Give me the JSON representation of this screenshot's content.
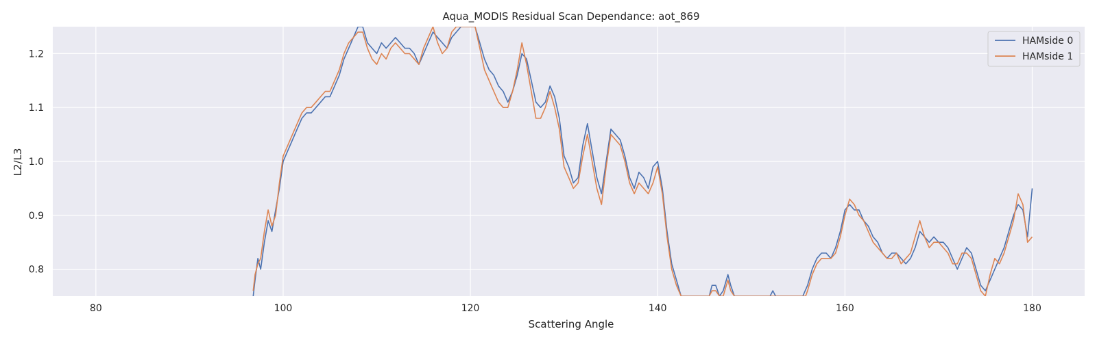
{
  "chart_data": {
    "type": "line",
    "title": "Aqua_MODIS Residual Scan Dependance: aot_869",
    "xlabel": "Scattering Angle",
    "ylabel": "L2/L3",
    "xlim": [
      75.4,
      185.6
    ],
    "ylim": [
      0.75,
      1.25
    ],
    "xticks": [
      80,
      100,
      120,
      140,
      160,
      180
    ],
    "xtick_labels": [
      "80",
      "100",
      "120",
      "140",
      "160",
      "180"
    ],
    "yticks": [
      0.8,
      0.9,
      1.0,
      1.1,
      1.2
    ],
    "ytick_labels": [
      "0.8",
      "0.9",
      "1.0",
      "1.1",
      "1.2"
    ],
    "grid": true,
    "legend_position": "top-right",
    "series": [
      {
        "name": "HAMside 0",
        "color": "#4c72b0",
        "points": [
          [
            96.8,
            0.75
          ],
          [
            97.0,
            0.78
          ],
          [
            97.3,
            0.82
          ],
          [
            97.6,
            0.8
          ],
          [
            98.0,
            0.85
          ],
          [
            98.4,
            0.89
          ],
          [
            98.8,
            0.87
          ],
          [
            99.2,
            0.91
          ],
          [
            99.6,
            0.95
          ],
          [
            100.0,
            1.0
          ],
          [
            100.5,
            1.02
          ],
          [
            101.0,
            1.04
          ],
          [
            101.5,
            1.06
          ],
          [
            102.0,
            1.08
          ],
          [
            102.5,
            1.09
          ],
          [
            103.0,
            1.09
          ],
          [
            103.5,
            1.1
          ],
          [
            104.0,
            1.11
          ],
          [
            104.5,
            1.12
          ],
          [
            105.0,
            1.12
          ],
          [
            105.5,
            1.14
          ],
          [
            106.0,
            1.16
          ],
          [
            106.5,
            1.19
          ],
          [
            107.0,
            1.21
          ],
          [
            107.5,
            1.23
          ],
          [
            108.0,
            1.25
          ],
          [
            108.5,
            1.25
          ],
          [
            109.0,
            1.22
          ],
          [
            109.5,
            1.21
          ],
          [
            110.0,
            1.2
          ],
          [
            110.5,
            1.22
          ],
          [
            111.0,
            1.21
          ],
          [
            111.5,
            1.22
          ],
          [
            112.0,
            1.23
          ],
          [
            112.5,
            1.22
          ],
          [
            113.0,
            1.21
          ],
          [
            113.5,
            1.21
          ],
          [
            114.0,
            1.2
          ],
          [
            114.5,
            1.18
          ],
          [
            115.0,
            1.2
          ],
          [
            115.5,
            1.22
          ],
          [
            116.0,
            1.24
          ],
          [
            116.5,
            1.23
          ],
          [
            117.0,
            1.22
          ],
          [
            117.5,
            1.21
          ],
          [
            118.0,
            1.23
          ],
          [
            118.5,
            1.24
          ],
          [
            119.0,
            1.25
          ],
          [
            119.5,
            1.25
          ],
          [
            120.0,
            1.25
          ],
          [
            120.5,
            1.25
          ],
          [
            121.0,
            1.22
          ],
          [
            121.5,
            1.19
          ],
          [
            122.0,
            1.17
          ],
          [
            122.5,
            1.16
          ],
          [
            123.0,
            1.14
          ],
          [
            123.5,
            1.13
          ],
          [
            124.0,
            1.11
          ],
          [
            124.5,
            1.13
          ],
          [
            125.0,
            1.16
          ],
          [
            125.5,
            1.2
          ],
          [
            126.0,
            1.19
          ],
          [
            126.5,
            1.15
          ],
          [
            127.0,
            1.11
          ],
          [
            127.5,
            1.1
          ],
          [
            128.0,
            1.11
          ],
          [
            128.5,
            1.14
          ],
          [
            129.0,
            1.12
          ],
          [
            129.5,
            1.08
          ],
          [
            130.0,
            1.01
          ],
          [
            130.5,
            0.99
          ],
          [
            131.0,
            0.96
          ],
          [
            131.5,
            0.97
          ],
          [
            132.0,
            1.03
          ],
          [
            132.5,
            1.07
          ],
          [
            133.0,
            1.02
          ],
          [
            133.5,
            0.97
          ],
          [
            134.0,
            0.94
          ],
          [
            134.5,
            1.0
          ],
          [
            135.0,
            1.06
          ],
          [
            135.5,
            1.05
          ],
          [
            136.0,
            1.04
          ],
          [
            136.5,
            1.01
          ],
          [
            137.0,
            0.97
          ],
          [
            137.5,
            0.95
          ],
          [
            138.0,
            0.98
          ],
          [
            138.5,
            0.97
          ],
          [
            139.0,
            0.95
          ],
          [
            139.5,
            0.99
          ],
          [
            140.0,
            1.0
          ],
          [
            140.5,
            0.95
          ],
          [
            141.0,
            0.87
          ],
          [
            141.5,
            0.81
          ],
          [
            142.0,
            0.78
          ],
          [
            142.5,
            0.75
          ],
          [
            145.5,
            0.75
          ],
          [
            145.8,
            0.77
          ],
          [
            146.2,
            0.77
          ],
          [
            146.6,
            0.75
          ],
          [
            147.0,
            0.76
          ],
          [
            147.5,
            0.79
          ],
          [
            147.8,
            0.77
          ],
          [
            148.2,
            0.75
          ],
          [
            152.0,
            0.75
          ],
          [
            152.3,
            0.76
          ],
          [
            152.6,
            0.75
          ],
          [
            155.5,
            0.75
          ],
          [
            156.0,
            0.77
          ],
          [
            156.5,
            0.8
          ],
          [
            157.0,
            0.82
          ],
          [
            157.5,
            0.83
          ],
          [
            158.0,
            0.83
          ],
          [
            158.5,
            0.82
          ],
          [
            159.0,
            0.84
          ],
          [
            159.5,
            0.87
          ],
          [
            160.0,
            0.91
          ],
          [
            160.5,
            0.92
          ],
          [
            161.0,
            0.91
          ],
          [
            161.5,
            0.91
          ],
          [
            162.0,
            0.89
          ],
          [
            162.5,
            0.88
          ],
          [
            163.0,
            0.86
          ],
          [
            163.5,
            0.85
          ],
          [
            164.0,
            0.83
          ],
          [
            164.5,
            0.82
          ],
          [
            165.0,
            0.83
          ],
          [
            165.5,
            0.83
          ],
          [
            166.0,
            0.82
          ],
          [
            166.5,
            0.81
          ],
          [
            167.0,
            0.82
          ],
          [
            167.5,
            0.84
          ],
          [
            168.0,
            0.87
          ],
          [
            168.5,
            0.86
          ],
          [
            169.0,
            0.85
          ],
          [
            169.5,
            0.86
          ],
          [
            170.0,
            0.85
          ],
          [
            170.5,
            0.85
          ],
          [
            171.0,
            0.84
          ],
          [
            171.5,
            0.82
          ],
          [
            172.0,
            0.8
          ],
          [
            172.5,
            0.82
          ],
          [
            173.0,
            0.84
          ],
          [
            173.5,
            0.83
          ],
          [
            174.0,
            0.8
          ],
          [
            174.5,
            0.77
          ],
          [
            175.0,
            0.76
          ],
          [
            175.5,
            0.78
          ],
          [
            176.0,
            0.8
          ],
          [
            176.5,
            0.82
          ],
          [
            177.0,
            0.84
          ],
          [
            177.5,
            0.87
          ],
          [
            178.0,
            0.9
          ],
          [
            178.5,
            0.92
          ],
          [
            179.0,
            0.91
          ],
          [
            179.5,
            0.86
          ],
          [
            180.0,
            0.95
          ]
        ]
      },
      {
        "name": "HAMside 1",
        "color": "#dd8452",
        "points": [
          [
            96.8,
            0.76
          ],
          [
            97.0,
            0.79
          ],
          [
            97.3,
            0.81
          ],
          [
            97.6,
            0.82
          ],
          [
            98.0,
            0.87
          ],
          [
            98.4,
            0.91
          ],
          [
            98.8,
            0.88
          ],
          [
            99.2,
            0.9
          ],
          [
            99.6,
            0.96
          ],
          [
            100.0,
            1.01
          ],
          [
            100.5,
            1.03
          ],
          [
            101.0,
            1.05
          ],
          [
            101.5,
            1.07
          ],
          [
            102.0,
            1.09
          ],
          [
            102.5,
            1.1
          ],
          [
            103.0,
            1.1
          ],
          [
            103.5,
            1.11
          ],
          [
            104.0,
            1.12
          ],
          [
            104.5,
            1.13
          ],
          [
            105.0,
            1.13
          ],
          [
            105.5,
            1.15
          ],
          [
            106.0,
            1.17
          ],
          [
            106.5,
            1.2
          ],
          [
            107.0,
            1.22
          ],
          [
            107.5,
            1.23
          ],
          [
            108.0,
            1.24
          ],
          [
            108.5,
            1.24
          ],
          [
            109.0,
            1.21
          ],
          [
            109.5,
            1.19
          ],
          [
            110.0,
            1.18
          ],
          [
            110.5,
            1.2
          ],
          [
            111.0,
            1.19
          ],
          [
            111.5,
            1.21
          ],
          [
            112.0,
            1.22
          ],
          [
            112.5,
            1.21
          ],
          [
            113.0,
            1.2
          ],
          [
            113.5,
            1.2
          ],
          [
            114.0,
            1.19
          ],
          [
            114.5,
            1.18
          ],
          [
            115.0,
            1.21
          ],
          [
            115.5,
            1.23
          ],
          [
            116.0,
            1.25
          ],
          [
            116.5,
            1.22
          ],
          [
            117.0,
            1.2
          ],
          [
            117.5,
            1.21
          ],
          [
            118.0,
            1.24
          ],
          [
            118.5,
            1.25
          ],
          [
            119.0,
            1.25
          ],
          [
            119.5,
            1.25
          ],
          [
            120.0,
            1.25
          ],
          [
            120.5,
            1.25
          ],
          [
            121.0,
            1.21
          ],
          [
            121.5,
            1.17
          ],
          [
            122.0,
            1.15
          ],
          [
            122.5,
            1.13
          ],
          [
            123.0,
            1.11
          ],
          [
            123.5,
            1.1
          ],
          [
            124.0,
            1.1
          ],
          [
            124.5,
            1.13
          ],
          [
            125.0,
            1.17
          ],
          [
            125.5,
            1.22
          ],
          [
            126.0,
            1.18
          ],
          [
            126.5,
            1.13
          ],
          [
            127.0,
            1.08
          ],
          [
            127.5,
            1.08
          ],
          [
            128.0,
            1.1
          ],
          [
            128.5,
            1.13
          ],
          [
            129.0,
            1.1
          ],
          [
            129.5,
            1.06
          ],
          [
            130.0,
            0.99
          ],
          [
            130.5,
            0.97
          ],
          [
            131.0,
            0.95
          ],
          [
            131.5,
            0.96
          ],
          [
            132.0,
            1.01
          ],
          [
            132.5,
            1.05
          ],
          [
            133.0,
            1.0
          ],
          [
            133.5,
            0.95
          ],
          [
            134.0,
            0.92
          ],
          [
            134.5,
            0.99
          ],
          [
            135.0,
            1.05
          ],
          [
            135.5,
            1.04
          ],
          [
            136.0,
            1.03
          ],
          [
            136.5,
            1.0
          ],
          [
            137.0,
            0.96
          ],
          [
            137.5,
            0.94
          ],
          [
            138.0,
            0.96
          ],
          [
            138.5,
            0.95
          ],
          [
            139.0,
            0.94
          ],
          [
            139.5,
            0.96
          ],
          [
            140.0,
            0.99
          ],
          [
            140.5,
            0.94
          ],
          [
            141.0,
            0.86
          ],
          [
            141.5,
            0.8
          ],
          [
            142.0,
            0.77
          ],
          [
            142.5,
            0.75
          ],
          [
            145.5,
            0.75
          ],
          [
            145.8,
            0.76
          ],
          [
            146.2,
            0.76
          ],
          [
            146.6,
            0.75
          ],
          [
            147.0,
            0.75
          ],
          [
            147.5,
            0.78
          ],
          [
            147.8,
            0.76
          ],
          [
            148.2,
            0.75
          ],
          [
            155.8,
            0.75
          ],
          [
            156.0,
            0.76
          ],
          [
            156.5,
            0.79
          ],
          [
            157.0,
            0.81
          ],
          [
            157.5,
            0.82
          ],
          [
            158.0,
            0.82
          ],
          [
            158.5,
            0.82
          ],
          [
            159.0,
            0.83
          ],
          [
            159.5,
            0.86
          ],
          [
            160.0,
            0.9
          ],
          [
            160.5,
            0.93
          ],
          [
            161.0,
            0.92
          ],
          [
            161.5,
            0.9
          ],
          [
            162.0,
            0.89
          ],
          [
            162.5,
            0.87
          ],
          [
            163.0,
            0.85
          ],
          [
            163.5,
            0.84
          ],
          [
            164.0,
            0.83
          ],
          [
            164.5,
            0.82
          ],
          [
            165.0,
            0.82
          ],
          [
            165.5,
            0.83
          ],
          [
            166.0,
            0.81
          ],
          [
            166.5,
            0.82
          ],
          [
            167.0,
            0.83
          ],
          [
            167.5,
            0.86
          ],
          [
            168.0,
            0.89
          ],
          [
            168.5,
            0.86
          ],
          [
            169.0,
            0.84
          ],
          [
            169.5,
            0.85
          ],
          [
            170.0,
            0.85
          ],
          [
            170.5,
            0.84
          ],
          [
            171.0,
            0.83
          ],
          [
            171.5,
            0.81
          ],
          [
            172.0,
            0.81
          ],
          [
            172.5,
            0.83
          ],
          [
            173.0,
            0.83
          ],
          [
            173.5,
            0.82
          ],
          [
            174.0,
            0.79
          ],
          [
            174.5,
            0.76
          ],
          [
            175.0,
            0.75
          ],
          [
            175.5,
            0.79
          ],
          [
            176.0,
            0.82
          ],
          [
            176.5,
            0.81
          ],
          [
            177.0,
            0.83
          ],
          [
            177.5,
            0.86
          ],
          [
            178.0,
            0.89
          ],
          [
            178.5,
            0.94
          ],
          [
            179.0,
            0.92
          ],
          [
            179.5,
            0.85
          ],
          [
            180.0,
            0.86
          ]
        ]
      }
    ]
  }
}
